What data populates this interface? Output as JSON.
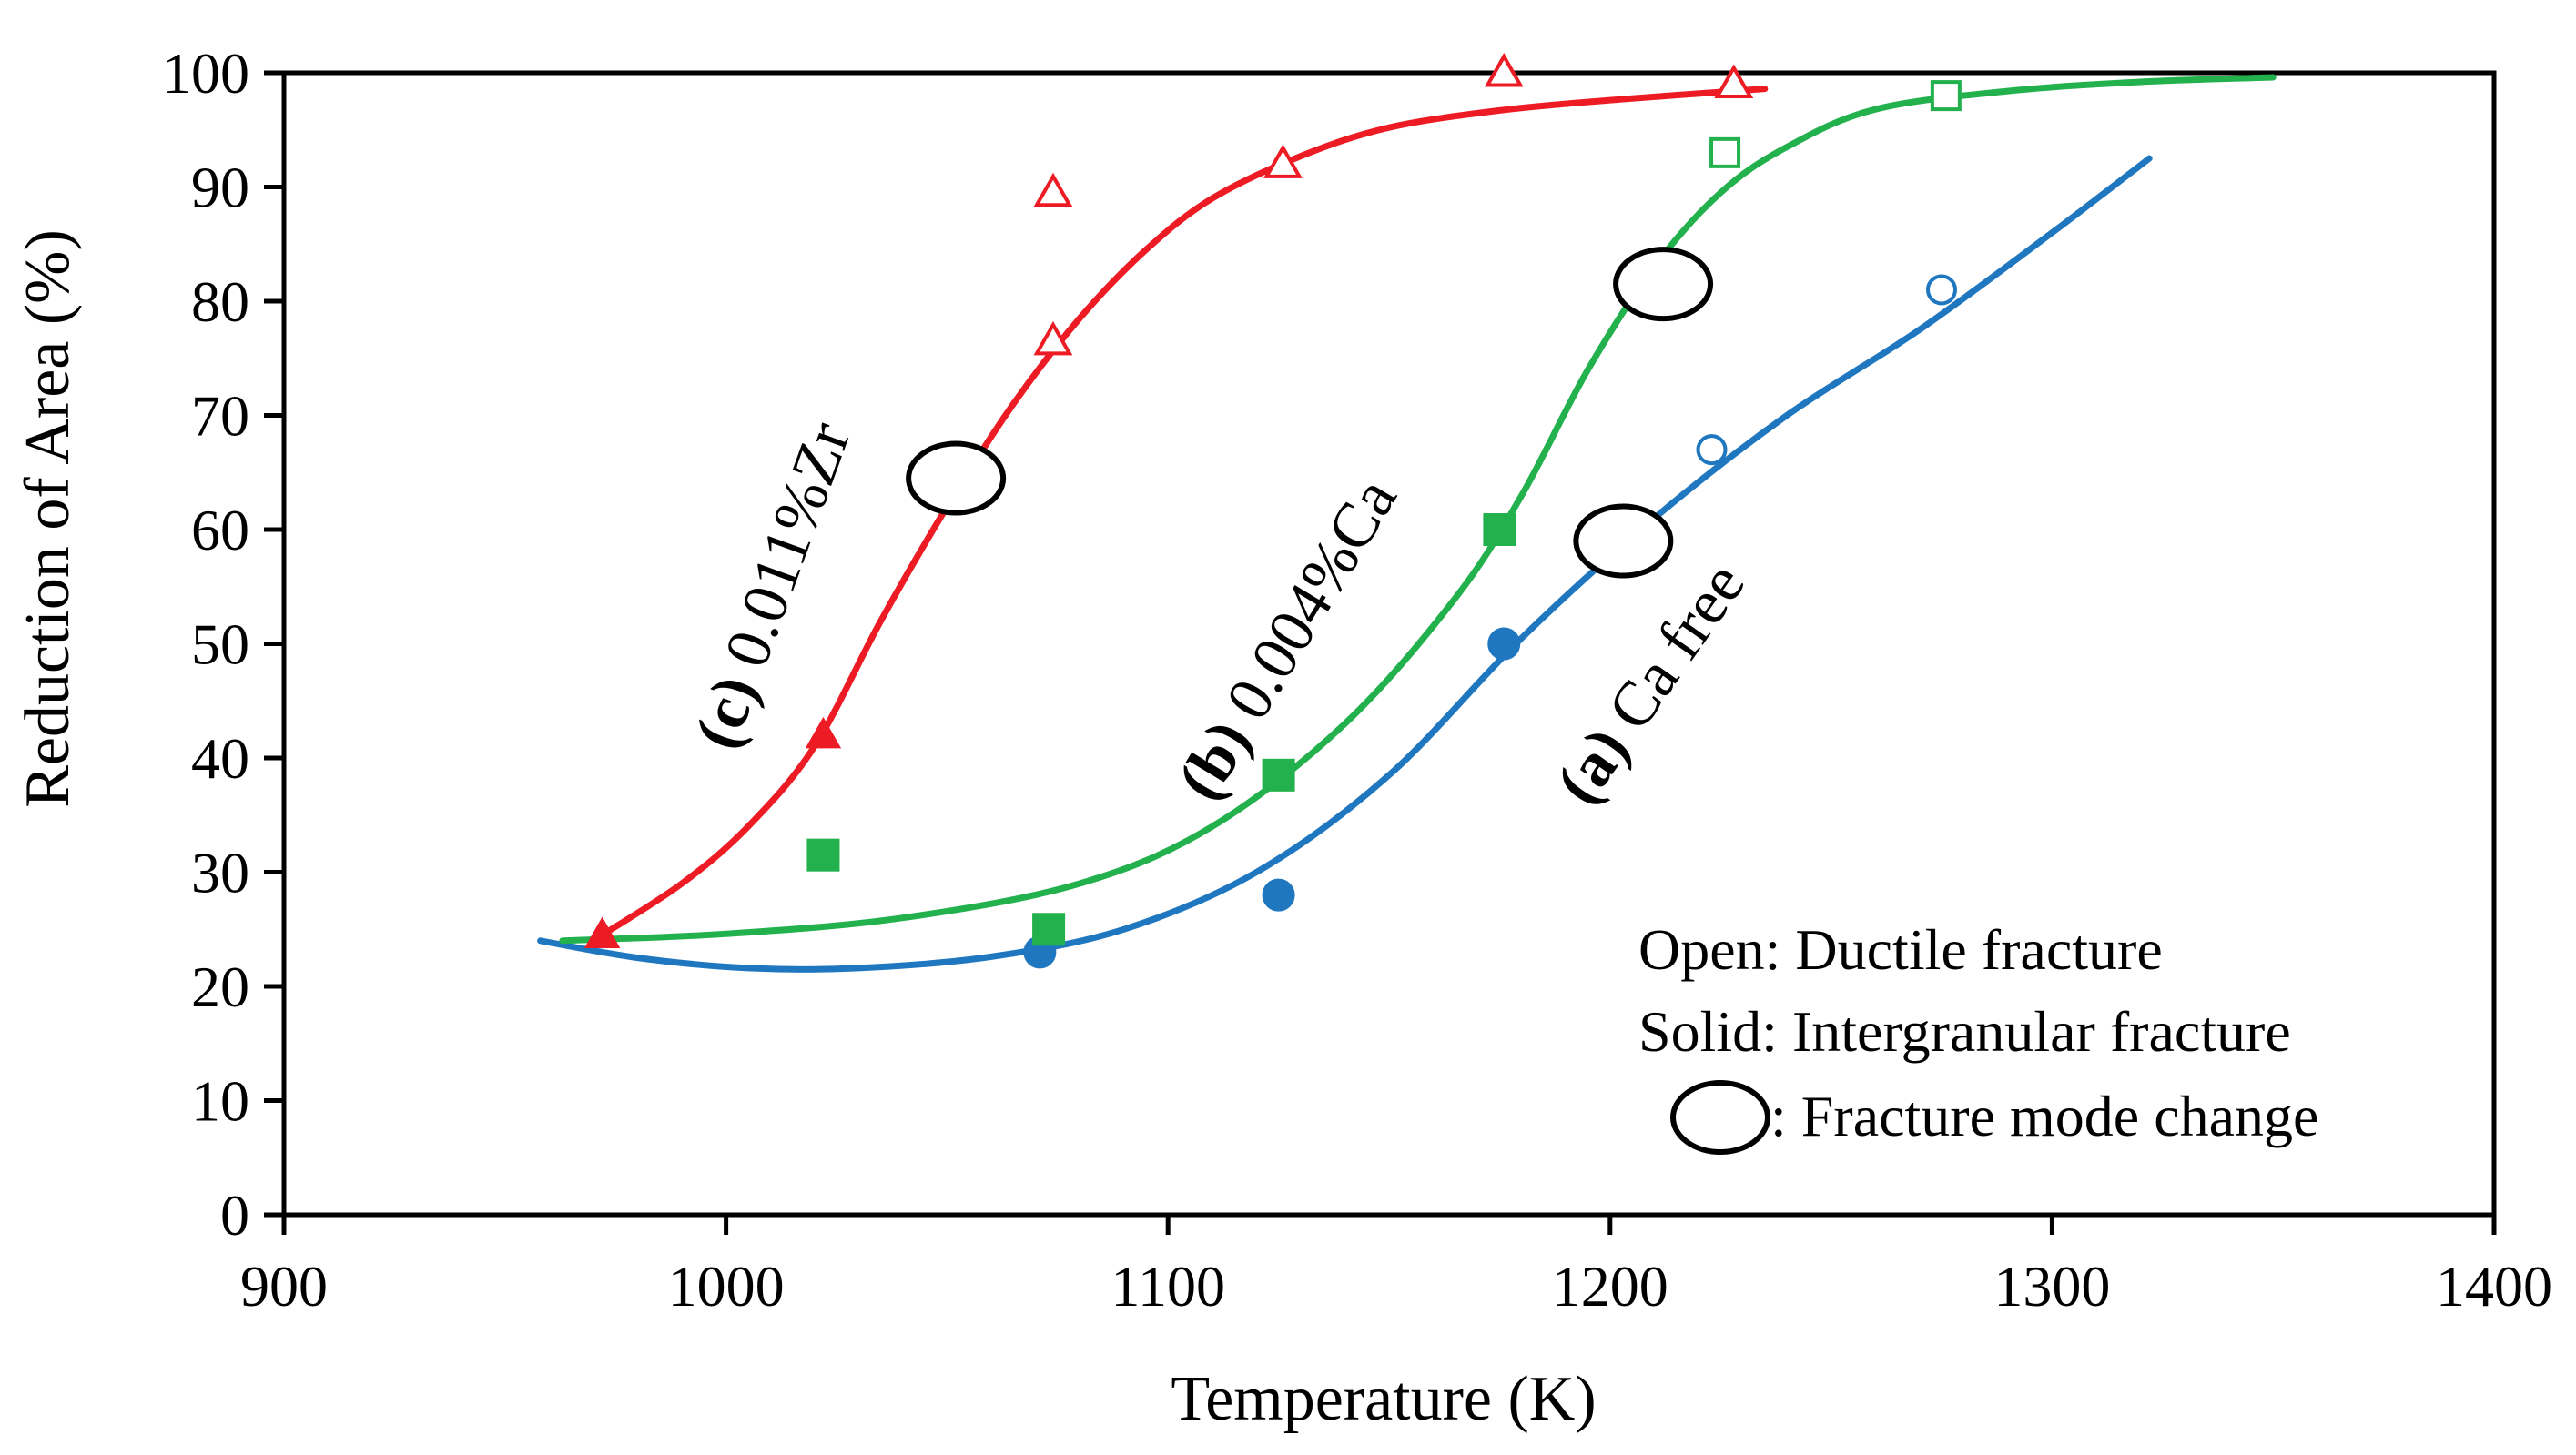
{
  "chart_data": {
    "type": "scatter",
    "title": "",
    "xlabel": "Temperature (K)",
    "ylabel": "Reduction of Area (%)",
    "xlim": [
      900,
      1400
    ],
    "ylim": [
      0,
      100
    ],
    "xticks": [
      900,
      1000,
      1100,
      1200,
      1300,
      1400
    ],
    "yticks": [
      0,
      10,
      20,
      30,
      40,
      50,
      60,
      70,
      80,
      90,
      100
    ],
    "series": [
      {
        "name": "(a) Ca free",
        "label_prefix": "(a)",
        "label_text": "Ca free",
        "color": "#1f77c0",
        "marker": "circle",
        "points": [
          {
            "x": 1071,
            "y": 23,
            "fill": "solid"
          },
          {
            "x": 1125,
            "y": 28,
            "fill": "solid"
          },
          {
            "x": 1176,
            "y": 50,
            "fill": "solid"
          },
          {
            "x": 1223,
            "y": 67,
            "fill": "open"
          },
          {
            "x": 1275,
            "y": 81,
            "fill": "open"
          }
        ],
        "curve": [
          [
            958,
            24
          ],
          [
            980,
            22.5
          ],
          [
            1005,
            21.6
          ],
          [
            1030,
            21.6
          ],
          [
            1060,
            22.6
          ],
          [
            1090,
            25
          ],
          [
            1120,
            30
          ],
          [
            1150,
            38.5
          ],
          [
            1180,
            50.5
          ],
          [
            1210,
            61
          ],
          [
            1240,
            70
          ],
          [
            1270,
            77.5
          ],
          [
            1300,
            86
          ],
          [
            1322,
            92.5
          ]
        ],
        "mode_change": {
          "x": 1203,
          "y": 59
        }
      },
      {
        "name": "(b) 0.004%Ca",
        "label_prefix": "(b)",
        "label_text": "0.004%Ca",
        "color": "#22b14c",
        "marker": "square",
        "points": [
          {
            "x": 1022,
            "y": 31.5,
            "fill": "solid"
          },
          {
            "x": 1073,
            "y": 25,
            "fill": "solid"
          },
          {
            "x": 1125,
            "y": 38.5,
            "fill": "solid"
          },
          {
            "x": 1175,
            "y": 60,
            "fill": "solid"
          },
          {
            "x": 1226,
            "y": 93,
            "fill": "open"
          },
          {
            "x": 1276,
            "y": 98,
            "fill": "open"
          }
        ],
        "curve": [
          [
            963,
            24
          ],
          [
            1000,
            24.6
          ],
          [
            1040,
            26
          ],
          [
            1080,
            29
          ],
          [
            1110,
            34
          ],
          [
            1140,
            43
          ],
          [
            1165,
            54
          ],
          [
            1180,
            63
          ],
          [
            1195,
            74
          ],
          [
            1210,
            83
          ],
          [
            1225,
            89.5
          ],
          [
            1240,
            93.5
          ],
          [
            1260,
            96.8
          ],
          [
            1290,
            98.4
          ],
          [
            1320,
            99.2
          ],
          [
            1350,
            99.6
          ]
        ],
        "mode_change": {
          "x": 1212,
          "y": 81.5
        }
      },
      {
        "name": "(c) 0.011%Zr",
        "label_prefix": "(c)",
        "label_text": "0.011%Zr",
        "color": "#ed1c24",
        "marker": "triangle",
        "points": [
          {
            "x": 972,
            "y": 24.5,
            "fill": "solid"
          },
          {
            "x": 1022,
            "y": 42,
            "fill": "solid"
          },
          {
            "x": 1074,
            "y": 89.5,
            "fill": "open"
          },
          {
            "x": 1074,
            "y": 76.5,
            "fill": "open"
          },
          {
            "x": 1126,
            "y": 92,
            "fill": "open"
          },
          {
            "x": 1176,
            "y": 100,
            "fill": "open"
          },
          {
            "x": 1228,
            "y": 99,
            "fill": "open"
          }
        ],
        "curve": [
          [
            972,
            24.5
          ],
          [
            990,
            29
          ],
          [
            1005,
            34
          ],
          [
            1020,
            41
          ],
          [
            1035,
            52
          ],
          [
            1050,
            62
          ],
          [
            1065,
            71
          ],
          [
            1080,
            78.5
          ],
          [
            1095,
            84.5
          ],
          [
            1110,
            89
          ],
          [
            1130,
            92.7
          ],
          [
            1150,
            95.2
          ],
          [
            1175,
            96.7
          ],
          [
            1200,
            97.6
          ],
          [
            1235,
            98.6
          ]
        ],
        "mode_change": {
          "x": 1052,
          "y": 64.5
        }
      }
    ],
    "legend": {
      "position": "bottom-right",
      "lines": [
        "Open: Ductile fracture",
        "Solid: Intergranular fracture",
        ": Fracture mode change"
      ]
    }
  }
}
